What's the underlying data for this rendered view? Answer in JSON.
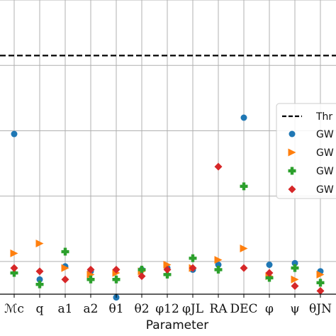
{
  "chart_data": {
    "type": "scatter",
    "categories": [
      "ℳc",
      "q",
      "a1",
      "a2",
      "θ1",
      "θ2",
      "φ12",
      "φJL",
      "RA",
      "DEC",
      "φ",
      "ψ",
      "θJN"
    ],
    "xlabel": "Parameter",
    "ylabel": "",
    "ylim": [
      0.1,
      1.0
    ],
    "grid": true,
    "legend_placement": "right",
    "threshold": {
      "label": "Thr",
      "value": 0.83,
      "color": "#000000",
      "style": "dashed"
    },
    "series": [
      {
        "name": "GW",
        "marker": "circle",
        "color": "#1f77b4",
        "values": [
          0.59,
          0.145,
          0.185,
          0.17,
          0.09,
          0.175,
          0.18,
          0.175,
          0.19,
          0.64,
          0.19,
          0.195,
          0.17
        ]
      },
      {
        "name": "GW",
        "marker": "triangle-right",
        "color": "#ff7f0e",
        "values": [
          0.225,
          0.255,
          0.18,
          0.16,
          0.165,
          0.17,
          0.19,
          0.18,
          0.205,
          0.24,
          0.155,
          0.145,
          0.16
        ]
      },
      {
        "name": "GW",
        "marker": "plus",
        "color": "#2ca02c",
        "values": [
          0.165,
          0.13,
          0.23,
          0.145,
          0.145,
          0.175,
          0.16,
          0.21,
          0.175,
          0.43,
          0.15,
          0.18,
          0.135
        ]
      },
      {
        "name": "GW",
        "marker": "diamond",
        "color": "#d62728",
        "values": [
          0.18,
          0.17,
          0.145,
          0.175,
          0.175,
          0.155,
          0.175,
          0.18,
          0.49,
          0.18,
          0.165,
          0.125,
          0.11
        ]
      }
    ]
  }
}
